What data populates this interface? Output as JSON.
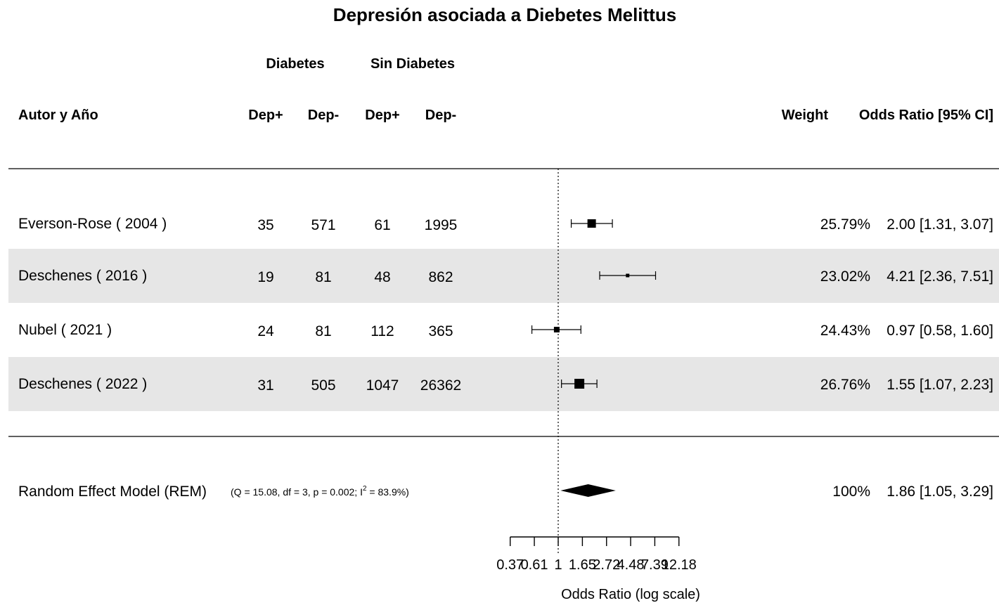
{
  "title": "Depresión asociada a Diebetes Melittus",
  "group_headers": {
    "diabetes": "Diabetes",
    "sin_diabetes": "Sin Diabetes"
  },
  "column_headers": {
    "study": "Autor y Año",
    "dep_pos_1": "Dep+",
    "dep_neg_1": "Dep-",
    "dep_pos_2": "Dep+",
    "dep_neg_2": "Dep-",
    "weight": "Weight",
    "or": "Odds Ratio [95% CI]"
  },
  "model": {
    "label": "Random Effect Model (REM)",
    "stats": "(Q = 15.08, df = 3, p = 0.002; I² = 83.9%)",
    "stats_parts": {
      "pre": "(Q = 15.08, df = 3, p = 0.002; I",
      "sup": "2",
      "post": " = 83.9%)"
    },
    "weight": "100%",
    "or_text": "1.86 [1.05, 3.29]"
  },
  "chart_data": {
    "type": "forest",
    "title": "Depresión asociada a Diebetes Melittus",
    "xlabel": "Odds Ratio (log scale)",
    "x_scale": "log",
    "x_ticks": [
      "0.37",
      "0.61",
      "1",
      "1.65",
      "2.72",
      "4.48",
      "7.39",
      "12.18"
    ],
    "x_tick_values": [
      0.37,
      0.61,
      1,
      1.65,
      2.72,
      4.48,
      7.39,
      12.18
    ],
    "reference_line": 1,
    "studies": [
      {
        "label": "Everson-Rose  ( 2004 )",
        "dep_pos_diab": "35",
        "dep_neg_diab": "571",
        "dep_pos_nodiab": "61",
        "dep_neg_nodiab": "1995",
        "weight": "25.79%",
        "or": 2.0,
        "lo": 1.31,
        "hi": 3.07,
        "or_text": "2.00 [1.31, 3.07]"
      },
      {
        "label": "Deschenes  ( 2016 )",
        "dep_pos_diab": "19",
        "dep_neg_diab": "81",
        "dep_pos_nodiab": "48",
        "dep_neg_nodiab": "862",
        "weight": "23.02%",
        "or": 4.21,
        "lo": 2.36,
        "hi": 7.51,
        "or_text": "4.21 [2.36, 7.51]"
      },
      {
        "label": "Nubel  ( 2021 )",
        "dep_pos_diab": "24",
        "dep_neg_diab": "81",
        "dep_pos_nodiab": "112",
        "dep_neg_nodiab": "365",
        "weight": "24.43%",
        "or": 0.97,
        "lo": 0.58,
        "hi": 1.6,
        "or_text": "0.97 [0.58, 1.60]"
      },
      {
        "label": "Deschenes  ( 2022 )",
        "dep_pos_diab": "31",
        "dep_neg_diab": "505",
        "dep_pos_nodiab": "1047",
        "dep_neg_nodiab": "26362",
        "weight": "26.76%",
        "or": 1.55,
        "lo": 1.07,
        "hi": 2.23,
        "or_text": "1.55 [1.07, 2.23]"
      }
    ],
    "summary": {
      "or": 1.86,
      "lo": 1.05,
      "hi": 3.29
    },
    "shaded_rows": [
      1,
      3
    ]
  }
}
